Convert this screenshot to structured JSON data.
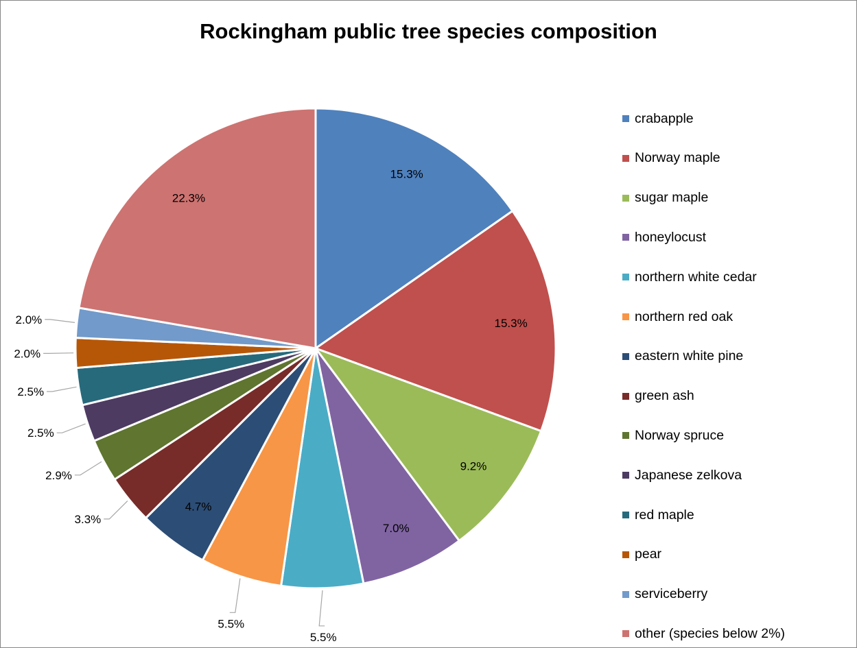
{
  "chart_data": {
    "type": "pie",
    "title": "Rockingham public tree species composition",
    "legend_position": "right",
    "slices": [
      {
        "name": "crabapple",
        "value": 15.3,
        "label": "15.3%",
        "color": "#4F81BD"
      },
      {
        "name": "Norway maple",
        "value": 15.3,
        "label": "15.3%",
        "color": "#C0504D"
      },
      {
        "name": "sugar maple",
        "value": 9.2,
        "label": "9.2%",
        "color": "#9BBB59"
      },
      {
        "name": "honeylocust",
        "value": 7.0,
        "label": "7.0%",
        "color": "#8064A2"
      },
      {
        "name": "northern white cedar",
        "value": 5.5,
        "label": "5.5%",
        "color": "#4BACC6"
      },
      {
        "name": "northern red oak",
        "value": 5.5,
        "label": "5.5%",
        "color": "#F79646"
      },
      {
        "name": "eastern white pine",
        "value": 4.7,
        "label": "4.7%",
        "color": "#2C4D75"
      },
      {
        "name": "green ash",
        "value": 3.3,
        "label": "3.3%",
        "color": "#772C2A"
      },
      {
        "name": "Norway spruce",
        "value": 2.9,
        "label": "2.9%",
        "color": "#5F7530"
      },
      {
        "name": "Japanese zelkova",
        "value": 2.5,
        "label": "2.5%",
        "color": "#4D3B62"
      },
      {
        "name": "red maple",
        "value": 2.5,
        "label": "2.5%",
        "color": "#276A7C"
      },
      {
        "name": "pear",
        "value": 2.0,
        "label": "2.0%",
        "color": "#B65708"
      },
      {
        "name": "serviceberry",
        "value": 2.0,
        "label": "2.0%",
        "color": "#729ACA"
      },
      {
        "name": "other (species below 2%)",
        "value": 22.3,
        "label": "22.3%",
        "color": "#CD7371"
      }
    ]
  }
}
